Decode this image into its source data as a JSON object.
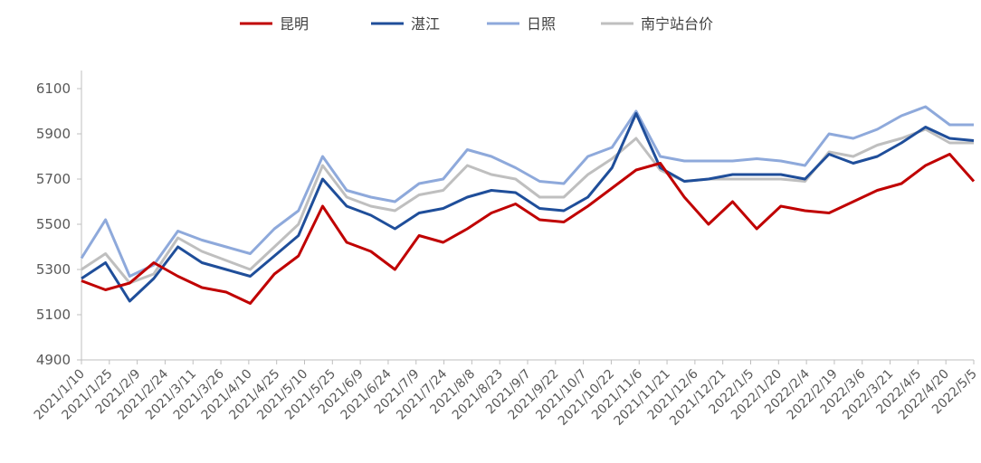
{
  "chart_data": {
    "type": "line",
    "title": "",
    "xlabel": "",
    "ylabel": "",
    "ylim": [
      4900,
      6100
    ],
    "yticks": [
      4900,
      5100,
      5300,
      5500,
      5700,
      5900,
      6100
    ],
    "x_ticks": [
      "2021/1/10",
      "2021/1/25",
      "2021/2/9",
      "2021/2/24",
      "2021/3/11",
      "2021/3/26",
      "2021/4/10",
      "2021/4/25",
      "2021/5/10",
      "2021/5/25",
      "2021/6/9",
      "2021/6/24",
      "2021/7/9",
      "2021/7/24",
      "2021/8/8",
      "2021/8/23",
      "2021/9/7",
      "2021/9/22",
      "2021/10/7",
      "2021/10/22",
      "2021/11/6",
      "2021/11/21",
      "2021/12/6",
      "2021/12/21",
      "2022/1/5",
      "2022/1/20",
      "2022/2/4",
      "2022/2/19",
      "2022/3/6",
      "2022/3/21",
      "2022/4/5",
      "2022/4/20",
      "2022/5/5"
    ],
    "grid": false,
    "legend": "top",
    "series": [
      {
        "name": "昆明",
        "color": "#c00000",
        "values": [
          5250,
          5210,
          5240,
          5330,
          5270,
          5220,
          5200,
          5150,
          5280,
          5360,
          5580,
          5420,
          5380,
          5300,
          5450,
          5420,
          5480,
          5550,
          5590,
          5520,
          5510,
          5580,
          5660,
          5740,
          5770,
          5620,
          5500,
          5600,
          5480,
          5580,
          5560,
          5550,
          5600,
          5650,
          5680,
          5760,
          5810,
          5690
        ]
      },
      {
        "name": "湛江",
        "color": "#1f4e9a",
        "values": [
          5260,
          5330,
          5160,
          5260,
          5400,
          5330,
          5300,
          5270,
          5360,
          5450,
          5700,
          5580,
          5540,
          5480,
          5550,
          5570,
          5620,
          5650,
          5640,
          5570,
          5560,
          5620,
          5750,
          5990,
          5750,
          5690,
          5700,
          5720,
          5720,
          5720,
          5700,
          5810,
          5770,
          5800,
          5860,
          5930,
          5880,
          5870
        ]
      },
      {
        "name": "日照",
        "color": "#8ea9db",
        "values": [
          5350,
          5520,
          5270,
          5320,
          5470,
          5430,
          5400,
          5370,
          5480,
          5560,
          5800,
          5650,
          5620,
          5600,
          5680,
          5700,
          5830,
          5800,
          5750,
          5690,
          5680,
          5800,
          5840,
          6000,
          5800,
          5780,
          5780,
          5780,
          5790,
          5780,
          5760,
          5900,
          5880,
          5920,
          5980,
          6020,
          5940,
          5940
        ]
      },
      {
        "name": "南宁站台价",
        "color": "#bfbfbf",
        "values": [
          5300,
          5370,
          5240,
          5280,
          5440,
          5380,
          5340,
          5300,
          5400,
          5500,
          5760,
          5620,
          5580,
          5560,
          5630,
          5650,
          5760,
          5720,
          5700,
          5620,
          5620,
          5720,
          5790,
          5880,
          5740,
          5690,
          5700,
          5700,
          5700,
          5700,
          5690,
          5820,
          5800,
          5850,
          5880,
          5920,
          5860,
          5860
        ]
      }
    ]
  }
}
